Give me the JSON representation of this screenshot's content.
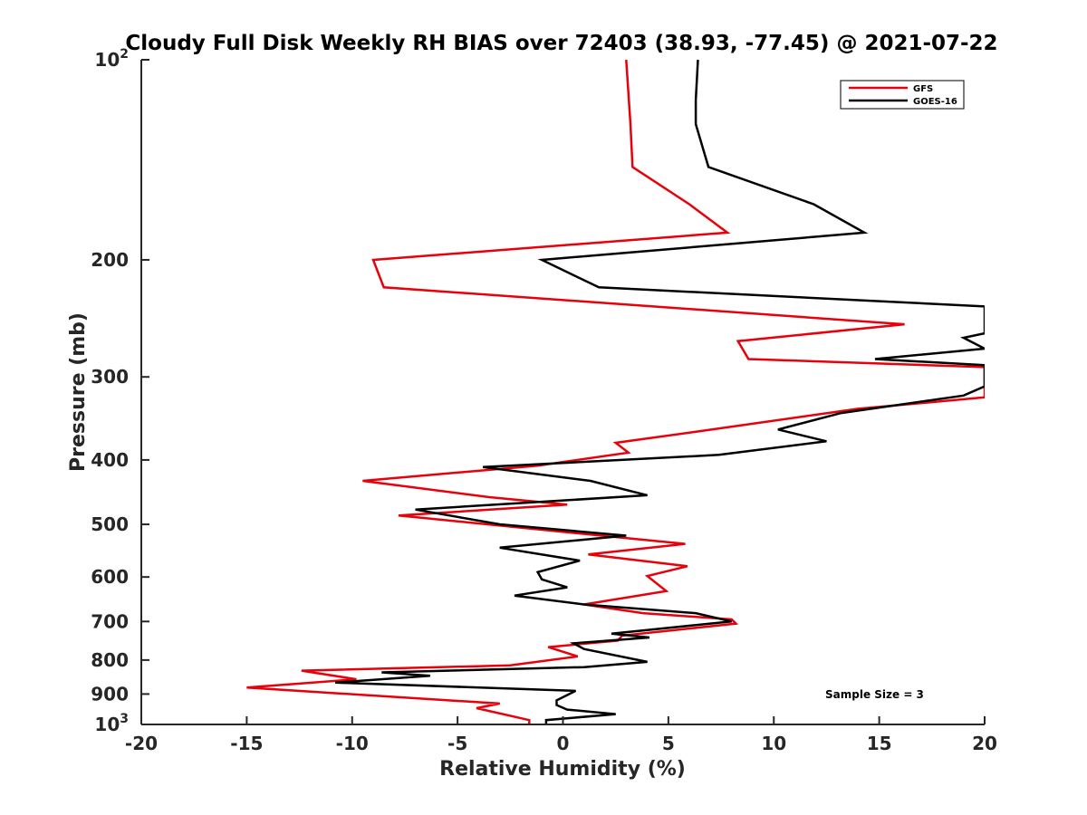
{
  "chart_data": {
    "type": "line",
    "title": "Cloudy Full Disk Weekly RH BIAS over 72403 (38.93, -77.45) @ 2021-07-22",
    "xlabel": "Relative Humidity (%)",
    "ylabel": "Pressure (mb)",
    "xlim": [
      -20,
      20
    ],
    "ylim": [
      1000,
      100
    ],
    "y_scale": "log",
    "y_reversed": true,
    "grid": false,
    "legend_position": "top-right",
    "x_ticks": [
      "-20",
      "-15",
      "-10",
      "-5",
      "0",
      "5",
      "10",
      "15",
      "20"
    ],
    "y_ticks": [
      {
        "value": 100,
        "base": "10",
        "exp": "2"
      },
      {
        "value": 200,
        "label": "200"
      },
      {
        "value": 300,
        "label": "300"
      },
      {
        "value": 400,
        "label": "400"
      },
      {
        "value": 500,
        "label": "500"
      },
      {
        "value": 600,
        "label": "600"
      },
      {
        "value": 700,
        "label": "700"
      },
      {
        "value": 800,
        "label": "800"
      },
      {
        "value": 900,
        "label": "900"
      },
      {
        "value": 1000,
        "base": "10",
        "exp": "3"
      }
    ],
    "series": [
      {
        "name": "GFS",
        "color": "#e8000b",
        "x": [
          3.0,
          3.2,
          3.3,
          6.0,
          7.8,
          -9.0,
          -8.5,
          16.2,
          8.3,
          8.8,
          20.0,
          20.0,
          14.0,
          6.5,
          2.5,
          3.1,
          -1.2,
          -9.5,
          -3.5,
          0.2,
          -7.8,
          5.8,
          1.2,
          5.9,
          4.0,
          4.9,
          1.0,
          3.8,
          8.0,
          8.2,
          2.8,
          2.6,
          -0.7,
          0.7,
          -2.5,
          -12.4,
          -9.8,
          -15.0,
          -3.0,
          -4.1,
          -1.6,
          -1.6
        ],
        "y": [
          100,
          125,
          145,
          165,
          182,
          200,
          220,
          250,
          265,
          282,
          290,
          322,
          335,
          362,
          377,
          390,
          408,
          430,
          455,
          467,
          485,
          535,
          555,
          578,
          598,
          630,
          660,
          680,
          695,
          705,
          735,
          748,
          765,
          790,
          815,
          830,
          855,
          880,
          930,
          945,
          985,
          1000
        ]
      },
      {
        "name": "GOES-16",
        "color": "#000000",
        "x": [
          6.4,
          6.3,
          6.3,
          6.9,
          11.9,
          14.3,
          -1.0,
          1.7,
          20.0,
          20.0,
          19.0,
          20.0,
          14.8,
          20.0,
          20.0,
          19.0,
          13.2,
          10.2,
          12.5,
          7.4,
          -3.8,
          1.3,
          4.0,
          -7.0,
          -3.0,
          3.0,
          -3.0,
          0.8,
          -1.2,
          -1.0,
          0.2,
          -2.3,
          1.0,
          6.3,
          8.0,
          2.3,
          4.1,
          0.5,
          1.0,
          4.0,
          1.0,
          -8.6,
          -6.3,
          -10.8,
          0.6,
          0.3,
          -0.3,
          -0.3,
          0.2,
          2.5,
          -0.8,
          -0.8
        ],
        "y": [
          100,
          115,
          125,
          145,
          165,
          182,
          200,
          220,
          235,
          258,
          262,
          272,
          282,
          288,
          310,
          320,
          340,
          360,
          375,
          393,
          410,
          430,
          452,
          475,
          500,
          520,
          542,
          567,
          590,
          605,
          622,
          640,
          660,
          680,
          700,
          730,
          740,
          755,
          770,
          805,
          820,
          835,
          845,
          865,
          890,
          900,
          920,
          935,
          950,
          965,
          985,
          1000
        ]
      }
    ],
    "annotations": [
      "Sample Size = 3"
    ]
  }
}
